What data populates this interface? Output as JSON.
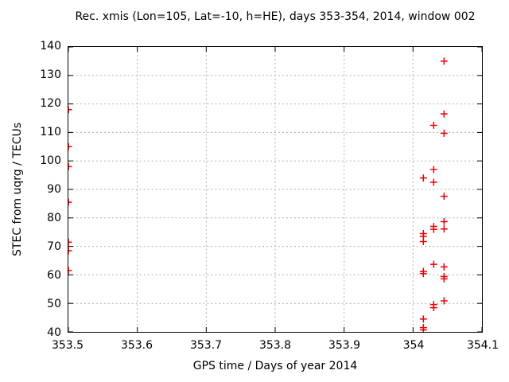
{
  "colors": {
    "background": "#ffffff",
    "text": "#000000",
    "border": "#000000",
    "grid": "#b0b0b0",
    "marker": "#ee0000"
  },
  "chart_data": {
    "type": "scatter",
    "title": "Rec. xmis (Lon=105, Lat=-10, h=HE), days 353-354, 2014, window 002",
    "xlabel": "GPS time / Days of year 2014",
    "ylabel": "STEC from uqrg / TECUs",
    "xlim": [
      353.5,
      354.1
    ],
    "ylim": [
      40,
      140
    ],
    "xticks": {
      "values": [
        353.5,
        353.6,
        353.7,
        353.8,
        353.9,
        354.0,
        354.1
      ],
      "labels": [
        "353.5",
        "353.6",
        "353.7",
        "353.8",
        "353.9",
        "354",
        "354.1"
      ]
    },
    "yticks": {
      "values": [
        40,
        50,
        60,
        70,
        80,
        90,
        100,
        110,
        120,
        130,
        140
      ],
      "labels": [
        "40",
        "50",
        "60",
        "70",
        "80",
        "90",
        "100",
        "110",
        "120",
        "130",
        "140"
      ]
    },
    "grid": true,
    "legend": "none",
    "marker": {
      "symbol": "plus",
      "color": "#ee0000",
      "size": 9
    },
    "points": [
      [
        353.5,
        118.0
      ],
      [
        353.5,
        105.0
      ],
      [
        353.5,
        98.0
      ],
      [
        353.5,
        85.5
      ],
      [
        353.5,
        71.5
      ],
      [
        353.5,
        68.5
      ],
      [
        353.5,
        61.5
      ],
      [
        354.015,
        94.0
      ],
      [
        354.015,
        74.5
      ],
      [
        354.015,
        73.5
      ],
      [
        354.015,
        71.7
      ],
      [
        354.015,
        61.2
      ],
      [
        354.015,
        60.5
      ],
      [
        354.015,
        44.5
      ],
      [
        354.015,
        41.5
      ],
      [
        354.015,
        40.7
      ],
      [
        354.03,
        112.5
      ],
      [
        354.03,
        97.0
      ],
      [
        354.03,
        92.5
      ],
      [
        354.03,
        77.0
      ],
      [
        354.03,
        76.0
      ],
      [
        354.03,
        63.7
      ],
      [
        354.03,
        49.6
      ],
      [
        354.03,
        48.5
      ],
      [
        354.045,
        135.0
      ],
      [
        354.045,
        116.5
      ],
      [
        354.045,
        109.7
      ],
      [
        354.045,
        87.6
      ],
      [
        354.045,
        78.7
      ],
      [
        354.045,
        76.1
      ],
      [
        354.045,
        62.8
      ],
      [
        354.045,
        59.4
      ],
      [
        354.045,
        58.6
      ],
      [
        354.045,
        50.9
      ]
    ]
  }
}
